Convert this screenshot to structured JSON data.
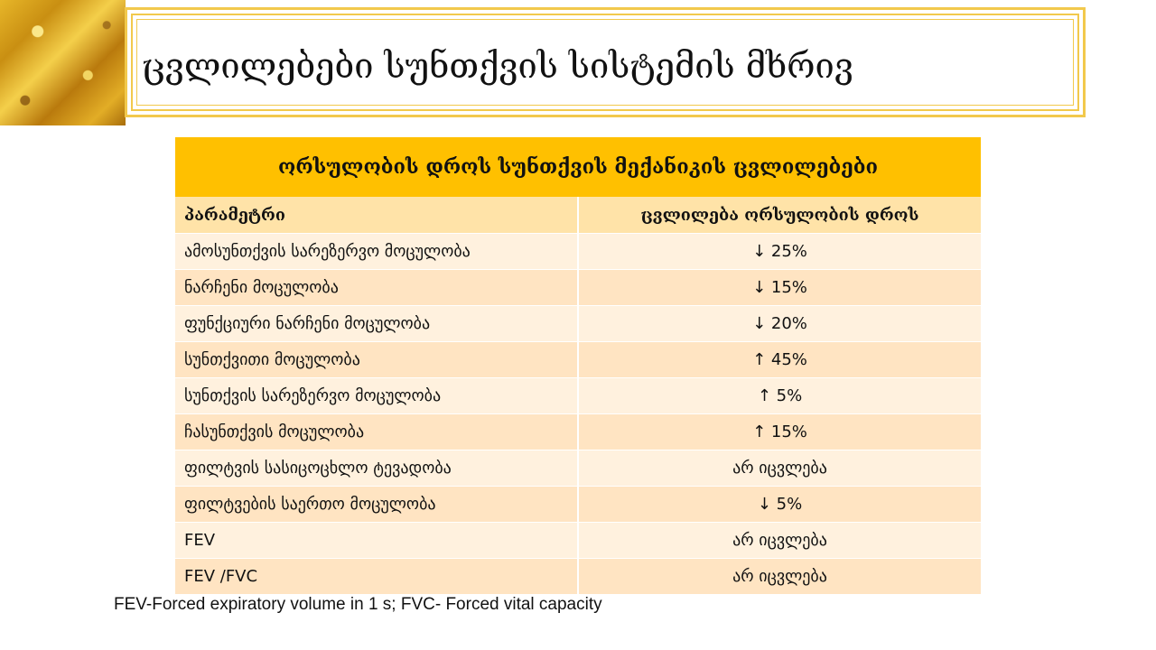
{
  "slide": {
    "title": "ცვლილებები სუნთქვის სისტემის მხრივ"
  },
  "table": {
    "header": "ორსულობის დროს სუნთქვის მექანიკის ცვლილებები",
    "columns": [
      "პარამეტრი",
      "ცვლილება ორსულობის დროს"
    ],
    "rows": [
      [
        "ამოსუნთქვის სარეზერვო მოცულობა",
        "↓ 25%"
      ],
      [
        "ნარჩენი მოცულობა",
        "↓ 15%"
      ],
      [
        "ფუნქციური ნარჩენი მოცულობა",
        "↓ 20%"
      ],
      [
        "სუნთქვითი მოცულობა",
        "↑ 45%"
      ],
      [
        "სუნთქვის სარეზერვო მოცულობა",
        "↑ 5%"
      ],
      [
        "ჩასუნთქვის მოცულობა",
        "↑ 15%"
      ],
      [
        "ფილტვის სასიცოცხლო ტევადობა",
        "არ იცვლება"
      ],
      [
        "ფილტვების საერთო მოცულობა",
        "↓ 5%"
      ],
      [
        "FEV",
        "არ იცვლება"
      ],
      [
        "FEV /FVC",
        "არ იცვლება"
      ]
    ]
  },
  "footnote": "FEV-Forced expiratory volume in 1 s; FVC- Forced vital capacity",
  "colors": {
    "header_bg": "#ffc000",
    "row_light": "#fff1de",
    "row_dark": "#ffe4c2",
    "frame": "#f2c94c"
  }
}
